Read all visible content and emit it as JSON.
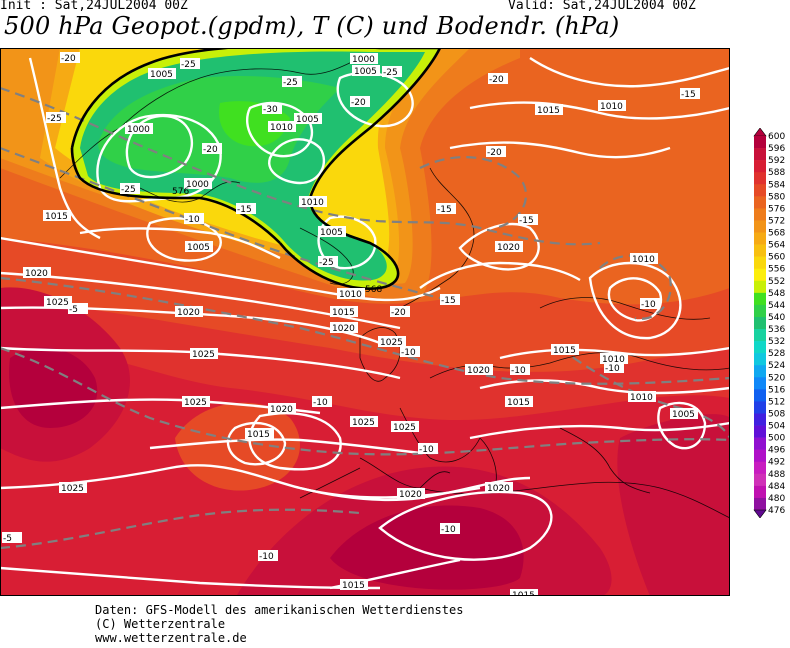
{
  "header": {
    "init": "Init : Sat,24JUL2004 00Z",
    "valid": "Valid: Sat,24JUL2004 00Z",
    "title": "500 hPa Geopot.(gpdm), T (C) und Bodendr. (hPa)"
  },
  "credits": [
    "Daten: GFS-Modell des amerikanischen Wetterdienstes",
    "(C) Wetterzentrale",
    "www.wetterzentrale.de"
  ],
  "legend": {
    "levels": [
      "600",
      "596",
      "592",
      "588",
      "584",
      "580",
      "576",
      "572",
      "568",
      "564",
      "560",
      "556",
      "552",
      "548",
      "544",
      "540",
      "536",
      "532",
      "528",
      "524",
      "520",
      "516",
      "512",
      "508",
      "504",
      "500",
      "496",
      "492",
      "488",
      "484",
      "480",
      "476"
    ],
    "colors": [
      "#b4003c",
      "#c8103a",
      "#d81e34",
      "#e0322e",
      "#e64a26",
      "#ea6420",
      "#ee7c1c",
      "#f29418",
      "#f6aa14",
      "#f8c010",
      "#fad80c",
      "#fcee0c",
      "#c8f008",
      "#40e020",
      "#30d048",
      "#20c070",
      "#18d2a0",
      "#10d8c8",
      "#10c8e0",
      "#10a8f0",
      "#1088f8",
      "#1060f0",
      "#2040e8",
      "#4020e0",
      "#6010d8",
      "#9010d0",
      "#b010c8",
      "#c81cc0",
      "#d030b8",
      "#c010b0",
      "#9010a0",
      "#600890"
    ]
  },
  "pressure_labels": [
    "1000",
    "1000",
    "1005",
    "1005",
    "1005",
    "1005",
    "1010",
    "1010",
    "1010",
    "1010",
    "1010",
    "1010",
    "1010",
    "1015",
    "1015",
    "1015",
    "1015",
    "1015",
    "1015",
    "1015",
    "1015",
    "1020",
    "1020",
    "1020",
    "1020",
    "1020",
    "1020",
    "1020",
    "1020",
    "1025",
    "1025",
    "1025",
    "1025",
    "1025",
    "1025",
    "1025",
    "1005",
    "1005",
    "1015",
    "1000"
  ],
  "temperature_labels": [
    "-20",
    "-25",
    "-25",
    "-25",
    "-25",
    "-30",
    "-20",
    "-25",
    "-20",
    "-20",
    "-15",
    "-10",
    "-5",
    "-15",
    "-25",
    "-20",
    "-15",
    "-10",
    "-10",
    "-10",
    "-10",
    "-10",
    "-10",
    "-15",
    "-10",
    "-10",
    "-5",
    "-20",
    "-15"
  ],
  "geopotential_labels": [
    "576",
    "568"
  ]
}
